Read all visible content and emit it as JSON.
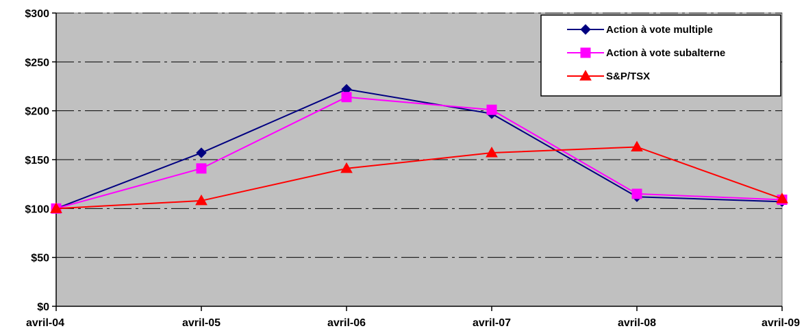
{
  "chart_data": {
    "type": "line",
    "title": "",
    "xlabel": "",
    "ylabel": "",
    "categories": [
      "avril-04",
      "avril-05",
      "avril-06",
      "avril-07",
      "avril-08",
      "avril-09"
    ],
    "ylim": [
      0,
      300
    ],
    "yticks": [
      0,
      50,
      100,
      150,
      200,
      250,
      300
    ],
    "ytick_labels": [
      "$0",
      "$50",
      "$100",
      "$150",
      "$200",
      "$250",
      "$300"
    ],
    "grid": "horizontal dash-dot",
    "legend_position": "top-right",
    "plot_background": "#C0C0C0",
    "series": [
      {
        "name": "Action à vote multiple",
        "color": "#000080",
        "marker": "diamond",
        "values": [
          100,
          157,
          222,
          197,
          112,
          107
        ]
      },
      {
        "name": "Action à vote subalterne",
        "color": "#FF00FF",
        "marker": "square",
        "values": [
          100,
          141,
          214,
          201,
          115,
          109
        ]
      },
      {
        "name": "S&P/TSX",
        "color": "#FF0000",
        "marker": "triangle",
        "values": [
          100,
          108,
          141,
          157,
          163,
          110
        ]
      }
    ]
  }
}
